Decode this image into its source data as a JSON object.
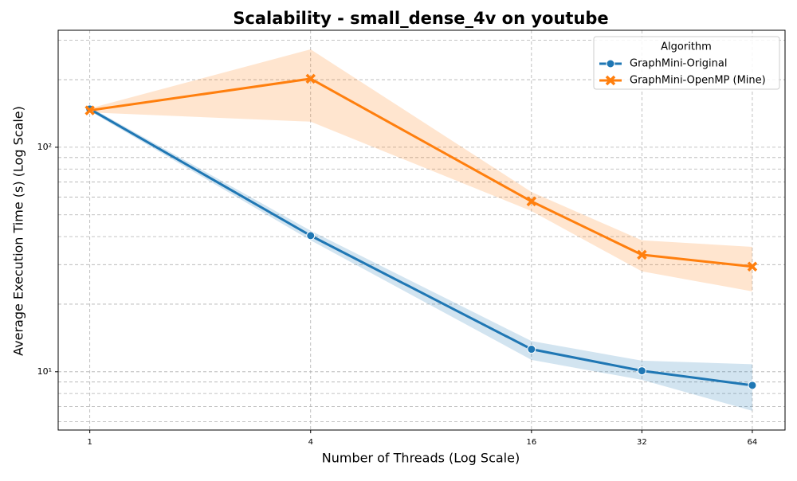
{
  "chart_data": {
    "type": "line",
    "title": "Scalability - small_dense_4v on youtube",
    "xlabel": "Number of Threads (Log Scale)",
    "ylabel": "Average Execution Time (s) (Log Scale)",
    "x": [
      1,
      4,
      16,
      32,
      64
    ],
    "xlim": [
      0.82,
      78.6
    ],
    "xticks": [
      1,
      4,
      16,
      32,
      64
    ],
    "xscale": "log2",
    "ylim": [
      5.5,
      332
    ],
    "yscale": "log",
    "yticks": [
      {
        "value": 10,
        "label": "10¹"
      },
      {
        "value": 100,
        "label": "10²"
      }
    ],
    "yminorticks": [
      6,
      7,
      8,
      9,
      20,
      30,
      40,
      50,
      60,
      70,
      80,
      90,
      200,
      300
    ],
    "grid": true,
    "legend_title": "Algorithm",
    "legend_position": "upper right",
    "series": [
      {
        "name": "GraphMini-Original",
        "color": "#1f77b4",
        "marker": "circle",
        "values": [
          148,
          40.4,
          12.6,
          10.1,
          8.7
        ],
        "lower": [
          145,
          38.5,
          11.3,
          9.2,
          6.7
        ],
        "upper": [
          151,
          42.5,
          13.7,
          11.2,
          10.8
        ]
      },
      {
        "name": "GraphMini-OpenMP (Mine)",
        "color": "#ff7f0e",
        "marker": "x",
        "values": [
          146,
          202,
          57.4,
          33.2,
          29.4
        ],
        "lower": [
          143,
          130,
          52,
          28,
          22.8
        ],
        "upper": [
          149,
          273,
          63.2,
          38.5,
          36
        ]
      }
    ]
  }
}
